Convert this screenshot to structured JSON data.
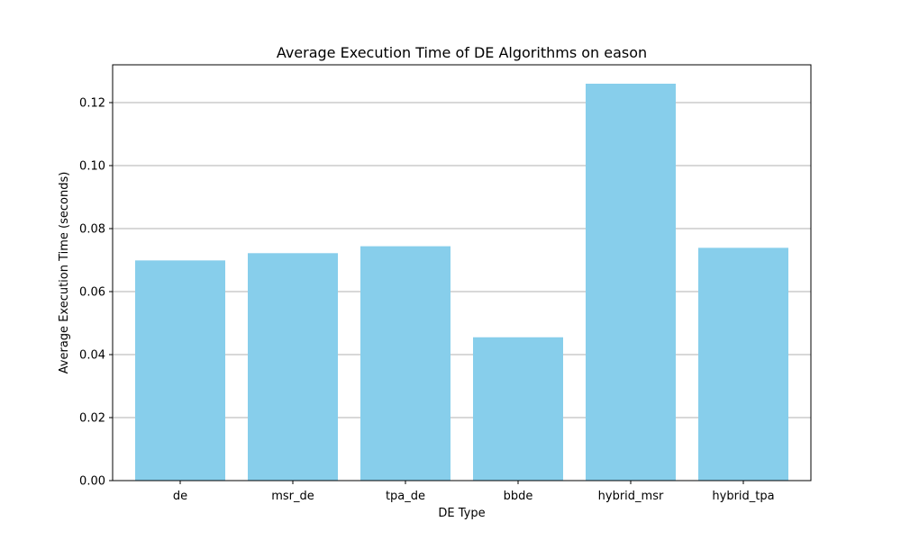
{
  "chart_data": {
    "type": "bar",
    "title": "Average Execution Time of DE Algorithms on eason",
    "xlabel": "DE Type",
    "ylabel": "Average Execution Time (seconds)",
    "categories": [
      "de",
      "msr_de",
      "tpa_de",
      "bbde",
      "hybrid_msr",
      "hybrid_tpa"
    ],
    "values": [
      0.0699,
      0.0722,
      0.0744,
      0.0455,
      0.126,
      0.0739
    ],
    "ylim": [
      0,
      0.132
    ],
    "yticks": [
      0.0,
      0.02,
      0.04,
      0.06,
      0.08,
      0.1,
      0.12
    ],
    "ytick_labels": [
      "0.00",
      "0.02",
      "0.04",
      "0.06",
      "0.08",
      "0.10",
      "0.12"
    ],
    "grid": "y",
    "bar_color": "#87ceeb"
  }
}
